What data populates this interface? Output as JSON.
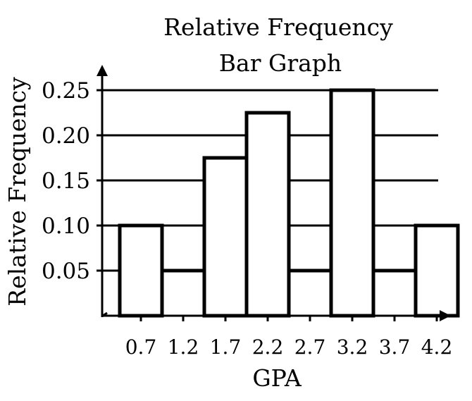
{
  "chart_data": {
    "type": "bar",
    "title_lines": [
      "Relative Frequency",
      "Bar Graph"
    ],
    "xlabel": "GPA",
    "ylabel": "Relative Frequency",
    "categories": [
      "0.7",
      "1.2",
      "1.7",
      "2.2",
      "2.7",
      "3.2",
      "3.7",
      "4.2"
    ],
    "values": [
      0.1,
      0.05,
      0.175,
      0.225,
      0.05,
      0.25,
      0.05,
      0.1
    ],
    "y_ticks": [
      "0.05",
      "0.10",
      "0.15",
      "0.20",
      "0.25"
    ],
    "y_tick_values": [
      0.05,
      0.1,
      0.15,
      0.2,
      0.25
    ],
    "ylim": [
      0,
      0.25
    ],
    "grid": true,
    "legend": "none",
    "colors": {
      "bar_fill": "#ffffff",
      "stroke": "#000000"
    }
  }
}
